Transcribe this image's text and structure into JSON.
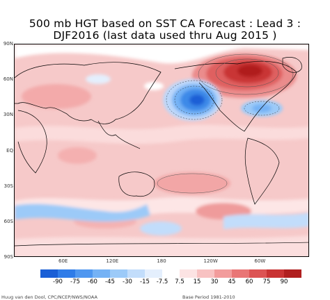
{
  "title": {
    "line1": "500 mb HGT based on SST CA Forecast : Lead 3 :",
    "line2": "DJF2016 (last data used thru Aug 2015 )"
  },
  "map": {
    "lat_labels": [
      "90N",
      "60N",
      "30N",
      "EQ",
      "30S",
      "60S",
      "90S"
    ],
    "lon_labels": [
      "60E",
      "120E",
      "180",
      "120W",
      "60W"
    ],
    "contour_interval": 7.5,
    "anomaly_centers": [
      {
        "name": "north-pacific-low",
        "sign": "negative",
        "level": -90
      },
      {
        "name": "north-america-high",
        "sign": "positive",
        "level": 90
      },
      {
        "name": "eastern-us-low",
        "sign": "negative",
        "level": -45
      },
      {
        "name": "tropical-ridge",
        "sign": "positive",
        "level": 30
      },
      {
        "name": "southern-pacific-high",
        "sign": "positive",
        "level": 30
      }
    ]
  },
  "colorbar": {
    "labels": [
      "-90",
      "-75",
      "-60",
      "-45",
      "-30",
      "-15",
      "-7.5",
      "7.5",
      "15",
      "30",
      "45",
      "60",
      "75",
      "90"
    ],
    "colors": [
      "#1a5fd6",
      "#2f7ce8",
      "#4f97f0",
      "#75b2f5",
      "#9ccaf8",
      "#c2ddfb",
      "#e4effd",
      "#ffffff",
      "#fce3e3",
      "#f8c2c2",
      "#f29c9c",
      "#e97676",
      "#dc5353",
      "#c93333",
      "#b01f1f"
    ]
  },
  "footer": {
    "credit": "Huug van den Dool, CPC/NCEP/NWS/NOAA",
    "base_period": "Base Period 1981-2010"
  },
  "colors": {
    "land_outline": "#000000",
    "positive_fill": "#f6c5c5",
    "negative_fill": "#3d8ae8",
    "background": "#ffffff"
  }
}
